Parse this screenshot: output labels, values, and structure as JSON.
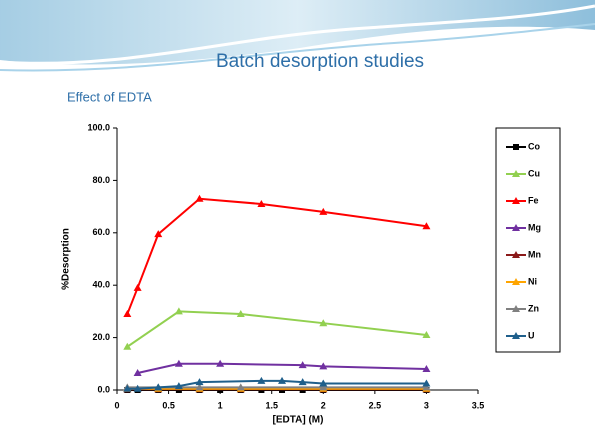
{
  "header": {
    "title": "Batch desorption studies",
    "subtitle": "Effect of EDTA"
  },
  "chart_data": {
    "type": "line",
    "xlabel": "[EDTA] (M)",
    "ylabel": "%Desorption",
    "xlim": [
      0,
      3.5
    ],
    "xticks": [
      0,
      0.5,
      1,
      1.5,
      2,
      2.5,
      3,
      3.5
    ],
    "ylim": [
      0,
      100
    ],
    "yticks": [
      {
        "value": 0,
        "label": "0.0"
      },
      {
        "value": 20,
        "label": "20.0"
      },
      {
        "value": 40,
        "label": "40.0"
      },
      {
        "value": 60,
        "label": "60.0"
      },
      {
        "value": 80,
        "label": "80.0"
      },
      {
        "value": 100,
        "label": "100.0"
      }
    ],
    "grid": false,
    "legend": "right",
    "series": [
      {
        "name": "Co",
        "color": "#000000",
        "marker": "square",
        "x": [
          0.1,
          0.2,
          0.4,
          0.6,
          0.8,
          1,
          1.2,
          1.4,
          1.6,
          1.8,
          2,
          3
        ],
        "values": [
          0,
          0,
          0,
          0,
          0,
          0,
          0,
          0,
          0,
          0,
          0,
          0
        ]
      },
      {
        "name": "Cu",
        "color": "#92d050",
        "marker": "triangle",
        "x": [
          0.1,
          0.6,
          1.2,
          2,
          3
        ],
        "values": [
          16.5,
          30,
          29,
          25.5,
          21
        ]
      },
      {
        "name": "Fe",
        "color": "#ff0000",
        "marker": "triangle",
        "x": [
          0.1,
          0.2,
          0.4,
          0.8,
          1.4,
          2,
          3
        ],
        "values": [
          29,
          39,
          59.5,
          73,
          71,
          68,
          62.5
        ]
      },
      {
        "name": "Mg",
        "color": "#7030a0",
        "marker": "triangle",
        "x": [
          0.2,
          0.6,
          1,
          1.8,
          2,
          3
        ],
        "values": [
          6.5,
          10,
          10,
          9.5,
          9,
          8
        ]
      },
      {
        "name": "Mn",
        "color": "#8b1a1a",
        "marker": "triangle",
        "x": [
          0.1,
          0.4,
          0.8,
          1.2,
          2,
          3
        ],
        "values": [
          0.3,
          0.3,
          0.3,
          0.3,
          0.3,
          0.3
        ]
      },
      {
        "name": "Ni",
        "color": "#ffa500",
        "marker": "triangle",
        "x": [
          0.1,
          0.4,
          0.8,
          1.2,
          2,
          3
        ],
        "values": [
          0.5,
          0.5,
          0.5,
          0.5,
          0.5,
          0.5
        ]
      },
      {
        "name": "Zn",
        "color": "#808080",
        "marker": "triangle",
        "x": [
          0.1,
          0.4,
          0.8,
          1.2,
          2,
          3
        ],
        "values": [
          1,
          1,
          1,
          1,
          1,
          1
        ]
      },
      {
        "name": "U",
        "color": "#1f5f8b",
        "marker": "triangle",
        "x": [
          0.1,
          0.2,
          0.4,
          0.6,
          0.8,
          1.4,
          1.6,
          1.8,
          2,
          3
        ],
        "values": [
          0.5,
          0.5,
          1,
          1.5,
          3,
          3.5,
          3.5,
          3,
          2.5,
          2.5
        ]
      }
    ]
  }
}
